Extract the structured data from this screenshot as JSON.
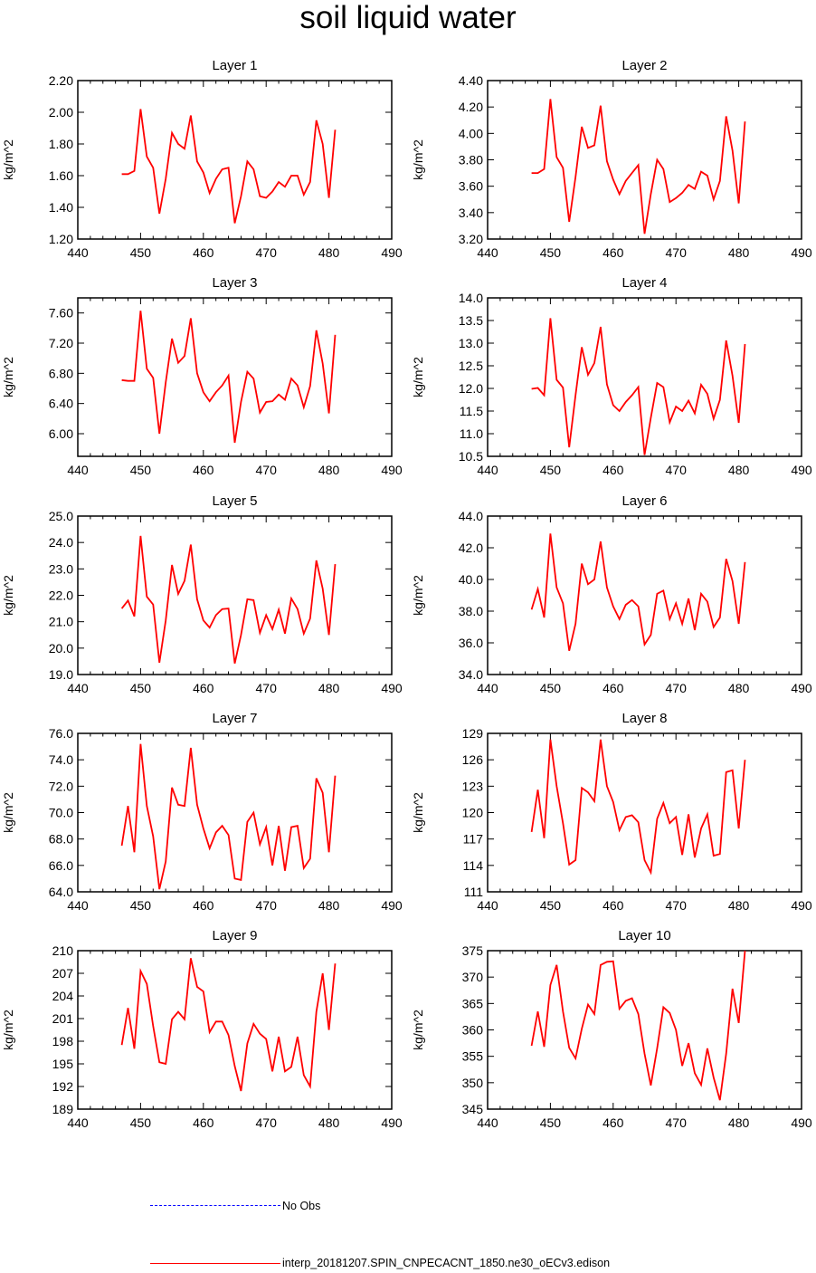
{
  "title": "soil liquid water",
  "legend": {
    "obs_label": "No Obs",
    "obs_color": "#0000ff",
    "model_label": "interp_20181207.SPIN_CNPECACNT_1850.ne30_oECv3.edison",
    "model_color": "#ff0000"
  },
  "chart_data": [
    {
      "type": "line",
      "title": "Layer 1",
      "ylabel": "kg/m^2",
      "xlim": [
        440,
        490
      ],
      "xticks": [
        440,
        450,
        460,
        470,
        480,
        490
      ],
      "ylim": [
        1.2,
        2.2
      ],
      "yticks": [
        "1.20",
        "1.40",
        "1.60",
        "1.80",
        "2.00",
        "2.20"
      ],
      "x": [
        447,
        448,
        449,
        450,
        451,
        452,
        453,
        454,
        455,
        456,
        457,
        458,
        459,
        460,
        461,
        462,
        463,
        464,
        465,
        466,
        467,
        468,
        469,
        470,
        471,
        472,
        473,
        474,
        475,
        476,
        477,
        478,
        479,
        480,
        481
      ],
      "series": [
        {
          "name": "interp_20181207.SPIN_CNPECACNT_1850.ne30_oECv3.edison",
          "values": [
            1.61,
            1.61,
            1.63,
            2.02,
            1.72,
            1.65,
            1.36,
            1.58,
            1.87,
            1.8,
            1.77,
            1.98,
            1.69,
            1.62,
            1.49,
            1.58,
            1.64,
            1.65,
            1.3,
            1.47,
            1.69,
            1.64,
            1.47,
            1.46,
            1.5,
            1.56,
            1.53,
            1.6,
            1.6,
            1.48,
            1.56,
            1.95,
            1.8,
            1.46,
            1.89
          ]
        }
      ]
    },
    {
      "type": "line",
      "title": "Layer 2",
      "ylabel": "kg/m^2",
      "xlim": [
        440,
        490
      ],
      "xticks": [
        440,
        450,
        460,
        470,
        480,
        490
      ],
      "ylim": [
        3.2,
        4.4
      ],
      "yticks": [
        "3.20",
        "3.40",
        "3.60",
        "3.80",
        "4.00",
        "4.20",
        "4.40"
      ],
      "x": [
        447,
        448,
        449,
        450,
        451,
        452,
        453,
        454,
        455,
        456,
        457,
        458,
        459,
        460,
        461,
        462,
        463,
        464,
        465,
        466,
        467,
        468,
        469,
        470,
        471,
        472,
        473,
        474,
        475,
        476,
        477,
        478,
        479,
        480,
        481
      ],
      "series": [
        {
          "name": "interp_20181207.SPIN_CNPECACNT_1850.ne30_oECv3.edison",
          "values": [
            3.7,
            3.7,
            3.73,
            4.26,
            3.82,
            3.74,
            3.33,
            3.67,
            4.05,
            3.89,
            3.91,
            4.21,
            3.79,
            3.65,
            3.54,
            3.64,
            3.7,
            3.76,
            3.24,
            3.54,
            3.8,
            3.73,
            3.48,
            3.51,
            3.55,
            3.61,
            3.58,
            3.71,
            3.68,
            3.5,
            3.64,
            4.13,
            3.87,
            3.47,
            4.09
          ]
        }
      ]
    },
    {
      "type": "line",
      "title": "Layer 3",
      "ylabel": "kg/m^2",
      "xlim": [
        440,
        490
      ],
      "xticks": [
        440,
        450,
        460,
        470,
        480,
        490
      ],
      "ylim": [
        5.7,
        7.8
      ],
      "yticks": [
        "6.00",
        "6.40",
        "6.80",
        "7.20",
        "7.60"
      ],
      "x": [
        447,
        448,
        449,
        450,
        451,
        452,
        453,
        454,
        455,
        456,
        457,
        458,
        459,
        460,
        461,
        462,
        463,
        464,
        465,
        466,
        467,
        468,
        469,
        470,
        471,
        472,
        473,
        474,
        475,
        476,
        477,
        478,
        479,
        480,
        481
      ],
      "series": [
        {
          "name": "interp_20181207.SPIN_CNPECACNT_1850.ne30_oECv3.edison",
          "values": [
            6.71,
            6.7,
            6.7,
            7.63,
            6.86,
            6.74,
            6.0,
            6.68,
            7.26,
            6.94,
            7.03,
            7.53,
            6.8,
            6.55,
            6.43,
            6.55,
            6.64,
            6.77,
            5.88,
            6.42,
            6.82,
            6.73,
            6.28,
            6.42,
            6.43,
            6.52,
            6.45,
            6.73,
            6.64,
            6.35,
            6.63,
            7.37,
            6.93,
            6.27,
            7.31
          ]
        }
      ]
    },
    {
      "type": "line",
      "title": "Layer 4",
      "ylabel": "kg/m^2",
      "xlim": [
        440,
        490
      ],
      "xticks": [
        440,
        450,
        460,
        470,
        480,
        490
      ],
      "ylim": [
        10.5,
        14.0
      ],
      "yticks": [
        "10.5",
        "11.0",
        "11.5",
        "12.0",
        "12.5",
        "13.0",
        "13.5",
        "14.0"
      ],
      "x": [
        447,
        448,
        449,
        450,
        451,
        452,
        453,
        454,
        455,
        456,
        457,
        458,
        459,
        460,
        461,
        462,
        463,
        464,
        465,
        466,
        467,
        468,
        469,
        470,
        471,
        472,
        473,
        474,
        475,
        476,
        477,
        478,
        479,
        480,
        481
      ],
      "series": [
        {
          "name": "interp_20181207.SPIN_CNPECACNT_1850.ne30_oECv3.edison",
          "values": [
            11.99,
            12.01,
            11.85,
            13.55,
            12.19,
            12.02,
            10.7,
            11.85,
            12.91,
            12.3,
            12.56,
            13.36,
            12.09,
            11.63,
            11.5,
            11.7,
            11.85,
            12.03,
            10.53,
            11.35,
            12.12,
            12.03,
            11.25,
            11.6,
            11.5,
            11.73,
            11.45,
            12.08,
            11.88,
            11.33,
            11.75,
            13.06,
            12.28,
            11.24,
            12.98
          ]
        }
      ]
    },
    {
      "type": "line",
      "title": "Layer 5",
      "ylabel": "kg/m^2",
      "xlim": [
        440,
        490
      ],
      "xticks": [
        440,
        450,
        460,
        470,
        480,
        490
      ],
      "ylim": [
        19.0,
        25.0
      ],
      "yticks": [
        "19.0",
        "20.0",
        "21.0",
        "22.0",
        "23.0",
        "24.0",
        "25.0"
      ],
      "x": [
        447,
        448,
        449,
        450,
        451,
        452,
        453,
        454,
        455,
        456,
        457,
        458,
        459,
        460,
        461,
        462,
        463,
        464,
        465,
        466,
        467,
        468,
        469,
        470,
        471,
        472,
        473,
        474,
        475,
        476,
        477,
        478,
        479,
        480,
        481
      ],
      "series": [
        {
          "name": "interp_20181207.SPIN_CNPECACNT_1850.ne30_oECv3.edison",
          "values": [
            21.5,
            21.8,
            21.2,
            24.25,
            21.95,
            21.65,
            19.45,
            21.05,
            23.15,
            22.05,
            22.55,
            23.92,
            21.85,
            21.05,
            20.78,
            21.25,
            21.48,
            21.5,
            19.42,
            20.5,
            21.85,
            21.82,
            20.58,
            21.25,
            20.72,
            21.46,
            20.55,
            21.88,
            21.48,
            20.55,
            21.12,
            23.32,
            22.25,
            20.5,
            23.18
          ]
        }
      ]
    },
    {
      "type": "line",
      "title": "Layer 6",
      "ylabel": "kg/m^2",
      "xlim": [
        440,
        490
      ],
      "xticks": [
        440,
        450,
        460,
        470,
        480,
        490
      ],
      "ylim": [
        34.0,
        44.0
      ],
      "yticks": [
        "34.0",
        "36.0",
        "38.0",
        "40.0",
        "42.0",
        "44.0"
      ],
      "x": [
        447,
        448,
        449,
        450,
        451,
        452,
        453,
        454,
        455,
        456,
        457,
        458,
        459,
        460,
        461,
        462,
        463,
        464,
        465,
        466,
        467,
        468,
        469,
        470,
        471,
        472,
        473,
        474,
        475,
        476,
        477,
        478,
        479,
        480,
        481
      ],
      "series": [
        {
          "name": "interp_20181207.SPIN_CNPECACNT_1850.ne30_oECv3.edison",
          "values": [
            38.1,
            39.4,
            37.6,
            42.9,
            39.5,
            38.5,
            35.5,
            37.2,
            41.0,
            39.7,
            40.0,
            42.4,
            39.5,
            38.3,
            37.5,
            38.4,
            38.7,
            38.3,
            35.9,
            36.5,
            39.1,
            39.3,
            37.5,
            38.5,
            37.2,
            38.8,
            36.8,
            39.1,
            38.6,
            37.0,
            37.6,
            41.3,
            39.9,
            37.2,
            41.1
          ]
        }
      ]
    },
    {
      "type": "line",
      "title": "Layer 7",
      "ylabel": "kg/m^2",
      "xlim": [
        440,
        490
      ],
      "xticks": [
        440,
        450,
        460,
        470,
        480,
        490
      ],
      "ylim": [
        64.0,
        76.0
      ],
      "yticks": [
        "64.0",
        "66.0",
        "68.0",
        "70.0",
        "72.0",
        "74.0",
        "76.0"
      ],
      "x": [
        447,
        448,
        449,
        450,
        451,
        452,
        453,
        454,
        455,
        456,
        457,
        458,
        459,
        460,
        461,
        462,
        463,
        464,
        465,
        466,
        467,
        468,
        469,
        470,
        471,
        472,
        473,
        474,
        475,
        476,
        477,
        478,
        479,
        480,
        481
      ],
      "series": [
        {
          "name": "interp_20181207.SPIN_CNPECACNT_1850.ne30_oECv3.edison",
          "values": [
            67.5,
            70.5,
            67.0,
            75.2,
            70.5,
            68.2,
            64.2,
            66.3,
            71.9,
            70.6,
            70.5,
            74.9,
            70.6,
            68.8,
            67.3,
            68.5,
            69.0,
            68.3,
            65.0,
            64.9,
            69.3,
            70.0,
            67.6,
            68.9,
            66.0,
            69.0,
            65.6,
            68.9,
            69.0,
            65.8,
            66.5,
            72.6,
            71.5,
            67.0,
            72.8
          ]
        }
      ]
    },
    {
      "type": "line",
      "title": "Layer 8",
      "ylabel": "kg/m^2",
      "xlim": [
        440,
        490
      ],
      "xticks": [
        440,
        450,
        460,
        470,
        480,
        490
      ],
      "ylim": [
        111,
        129
      ],
      "yticks": [
        "111",
        "114",
        "117",
        "120",
        "123",
        "126",
        "129"
      ],
      "x": [
        447,
        448,
        449,
        450,
        451,
        452,
        453,
        454,
        455,
        456,
        457,
        458,
        459,
        460,
        461,
        462,
        463,
        464,
        465,
        466,
        467,
        468,
        469,
        470,
        471,
        472,
        473,
        474,
        475,
        476,
        477,
        478,
        479,
        480,
        481
      ],
      "series": [
        {
          "name": "interp_20181207.SPIN_CNPECACNT_1850.ne30_oECv3.edison",
          "values": [
            117.8,
            122.6,
            117.1,
            128.3,
            123.0,
            118.8,
            114.1,
            114.6,
            122.8,
            122.3,
            121.3,
            128.3,
            123.0,
            121.2,
            118.0,
            119.5,
            119.7,
            118.9,
            114.6,
            113.2,
            119.3,
            121.1,
            118.8,
            119.5,
            115.2,
            119.8,
            114.9,
            118.2,
            119.8,
            115.1,
            115.3,
            124.6,
            124.8,
            118.2,
            126.0
          ]
        }
      ]
    },
    {
      "type": "line",
      "title": "Layer 9",
      "ylabel": "kg/m^2",
      "xlim": [
        440,
        490
      ],
      "xticks": [
        440,
        450,
        460,
        470,
        480,
        490
      ],
      "ylim": [
        189,
        210
      ],
      "yticks": [
        "189",
        "192",
        "195",
        "198",
        "201",
        "204",
        "207",
        "210"
      ],
      "x": [
        447,
        448,
        449,
        450,
        451,
        452,
        453,
        454,
        455,
        456,
        457,
        458,
        459,
        460,
        461,
        462,
        463,
        464,
        465,
        466,
        467,
        468,
        469,
        470,
        471,
        472,
        473,
        474,
        475,
        476,
        477,
        478,
        479,
        480,
        481
      ],
      "series": [
        {
          "name": "interp_20181207.SPIN_CNPECACNT_1850.ne30_oECv3.edison",
          "values": [
            197.5,
            202.4,
            197.0,
            207.3,
            205.6,
            200.0,
            195.2,
            195.0,
            200.9,
            201.9,
            200.9,
            209.0,
            205.2,
            204.6,
            199.2,
            200.6,
            200.6,
            198.8,
            194.7,
            191.4,
            197.7,
            200.3,
            199.0,
            198.3,
            194.0,
            198.6,
            194.0,
            194.6,
            198.6,
            193.5,
            192.0,
            201.9,
            207.0,
            199.5,
            208.3
          ]
        }
      ]
    },
    {
      "type": "line",
      "title": "Layer 10",
      "ylabel": "kg/m^2",
      "xlim": [
        440,
        490
      ],
      "xticks": [
        440,
        450,
        460,
        470,
        480,
        490
      ],
      "ylim": [
        345,
        375
      ],
      "yticks": [
        "345",
        "350",
        "355",
        "360",
        "365",
        "370",
        "375"
      ],
      "x": [
        447,
        448,
        449,
        450,
        451,
        452,
        453,
        454,
        455,
        456,
        457,
        458,
        459,
        460,
        461,
        462,
        463,
        464,
        465,
        466,
        467,
        468,
        469,
        470,
        471,
        472,
        473,
        474,
        475,
        476,
        477,
        478,
        479,
        480,
        481
      ],
      "series": [
        {
          "name": "interp_20181207.SPIN_CNPECACNT_1850.ne30_oECv3.edison",
          "values": [
            357.0,
            363.5,
            356.8,
            368.5,
            372.3,
            363.5,
            356.6,
            354.6,
            360.2,
            364.8,
            363.0,
            372.3,
            372.9,
            373.0,
            364.0,
            365.5,
            366.0,
            363.0,
            355.5,
            349.5,
            356.5,
            364.3,
            363.2,
            360.0,
            353.2,
            357.5,
            351.8,
            349.6,
            356.5,
            351.0,
            346.7,
            355.5,
            367.8,
            361.3,
            375.0
          ]
        }
      ]
    }
  ]
}
